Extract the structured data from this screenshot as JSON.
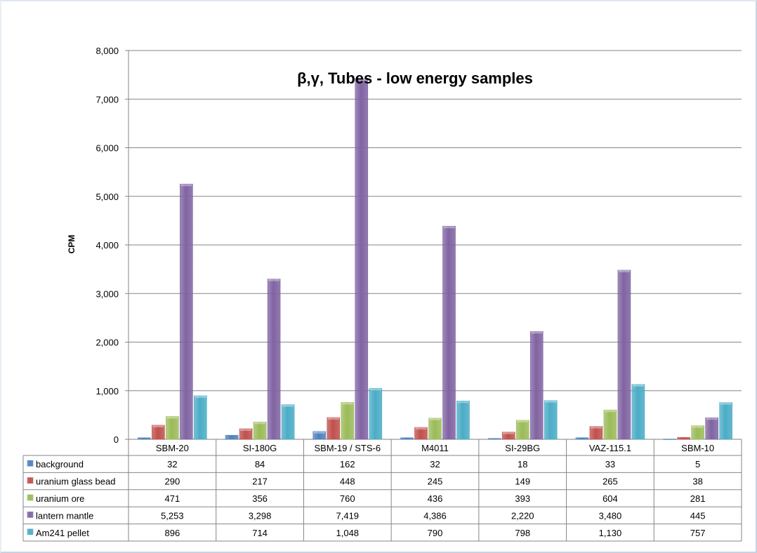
{
  "chart_data": {
    "type": "bar",
    "title": "β,γ, Tubes - low energy samples",
    "ylabel": "CPM",
    "xlabel": "",
    "ylim": [
      0,
      8000
    ],
    "yticks": [
      0,
      1000,
      2000,
      3000,
      4000,
      5000,
      6000,
      7000,
      8000
    ],
    "ytick_labels": [
      "0",
      "1,000",
      "2,000",
      "3,000",
      "4,000",
      "5,000",
      "6,000",
      "7,000",
      "8,000"
    ],
    "grid": true,
    "legend": "data-table-left",
    "categories": [
      "SBM-20",
      "SI-180G",
      "SBM-19 / STS-6",
      "M4011",
      "SI-29BG",
      "VAZ-115.1",
      "SBM-10"
    ],
    "series": [
      {
        "name": "background",
        "color": "#4f81bd",
        "values": [
          32,
          84,
          162,
          32,
          18,
          33,
          5
        ],
        "value_labels": [
          "32",
          "84",
          "162",
          "32",
          "18",
          "33",
          "5"
        ]
      },
      {
        "name": "uranium glass bead",
        "color": "#c0504d",
        "values": [
          290,
          217,
          448,
          245,
          149,
          265,
          38
        ],
        "value_labels": [
          "290",
          "217",
          "448",
          "245",
          "149",
          "265",
          "38"
        ]
      },
      {
        "name": "uranium ore",
        "color": "#9bbb59",
        "values": [
          471,
          356,
          760,
          436,
          393,
          604,
          281
        ],
        "value_labels": [
          "471",
          "356",
          "760",
          "436",
          "393",
          "604",
          "281"
        ]
      },
      {
        "name": "lantern mantle",
        "color": "#8064a2",
        "values": [
          5253,
          3298,
          7419,
          4386,
          2220,
          3480,
          445
        ],
        "value_labels": [
          "5,253",
          "3,298",
          "7,419",
          "4,386",
          "2,220",
          "3,480",
          "445"
        ]
      },
      {
        "name": "Am241 pellet",
        "color": "#4bacc6",
        "values": [
          896,
          714,
          1048,
          790,
          798,
          1130,
          757
        ],
        "value_labels": [
          "896",
          "714",
          "1,048",
          "790",
          "798",
          "1,130",
          "757"
        ]
      }
    ]
  }
}
